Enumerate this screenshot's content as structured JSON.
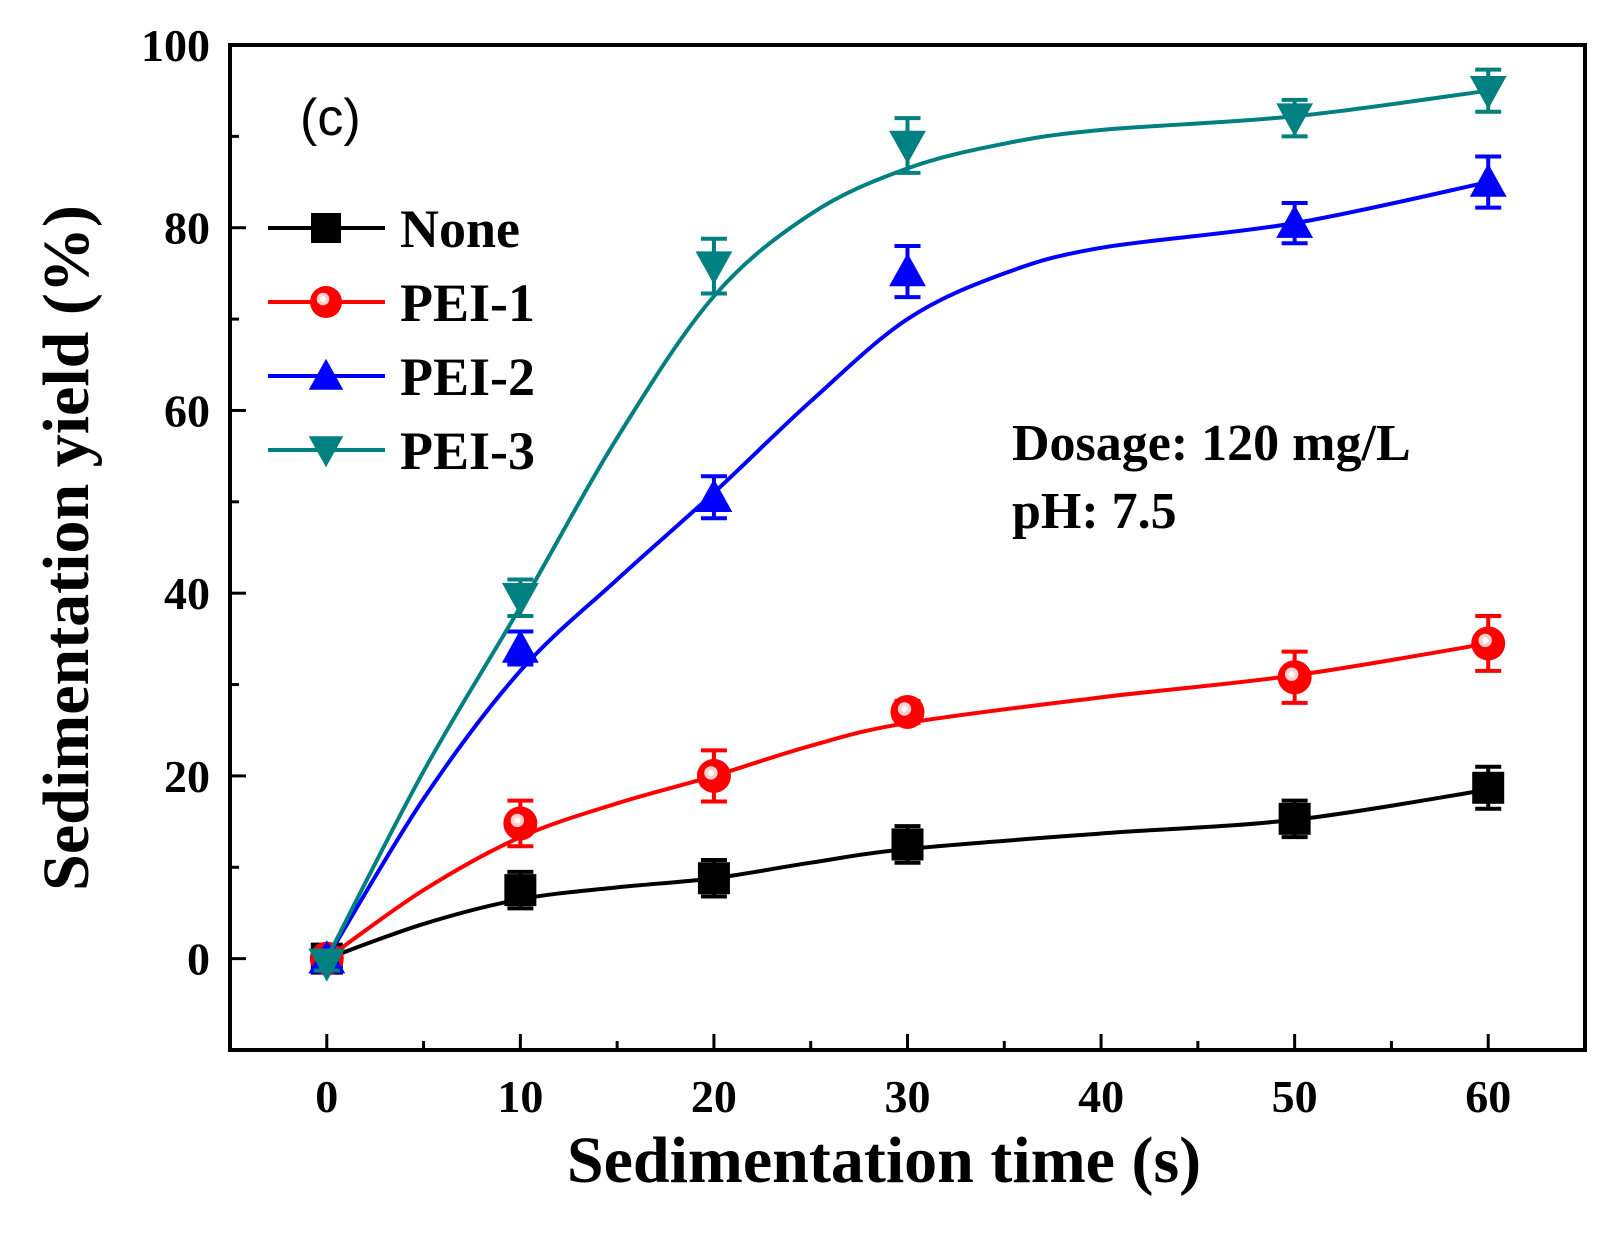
{
  "chart_data": {
    "type": "line",
    "panel_label": "(c)",
    "xlabel": "Sedimentation time (s)",
    "ylabel": "Sedimentation yield (%)",
    "xlim": [
      -5,
      65
    ],
    "ylim": [
      -10,
      100
    ],
    "xticks": [
      0,
      10,
      20,
      30,
      40,
      50,
      60
    ],
    "yticks": [
      0,
      20,
      40,
      60,
      80,
      100
    ],
    "legend_position": "top-left",
    "annotations": [
      "Dosage: 120 mg/L",
      "pH: 7.5"
    ],
    "series": [
      {
        "name": "None",
        "color": "#000000",
        "marker": "square",
        "x": [
          0,
          10,
          20,
          30,
          50,
          60
        ],
        "y": [
          0,
          7.5,
          8.8,
          12.5,
          15.3,
          18.7
        ],
        "err": [
          0.8,
          2.0,
          2.0,
          2.0,
          2.0,
          2.3
        ],
        "fit": [
          [
            0,
            0
          ],
          [
            5,
            3.8
          ],
          [
            10,
            6.5
          ],
          [
            15,
            7.8
          ],
          [
            20,
            8.8
          ],
          [
            25,
            10.5
          ],
          [
            30,
            12.0
          ],
          [
            40,
            13.7
          ],
          [
            50,
            15.2
          ],
          [
            60,
            18.5
          ]
        ]
      },
      {
        "name": "PEI-1",
        "color": "#ff0000",
        "marker": "circle",
        "x": [
          0,
          10,
          20,
          30,
          50,
          60
        ],
        "y": [
          0,
          14.8,
          20.0,
          27.0,
          30.8,
          34.5
        ],
        "err": [
          0.8,
          2.5,
          2.8,
          1.2,
          2.8,
          3.0
        ],
        "fit": [
          [
            0,
            0
          ],
          [
            5,
            7.5
          ],
          [
            10,
            13.3
          ],
          [
            15,
            17.0
          ],
          [
            20,
            20.0
          ],
          [
            25,
            23.3
          ],
          [
            30,
            25.8
          ],
          [
            40,
            28.6
          ],
          [
            50,
            31.0
          ],
          [
            60,
            34.5
          ]
        ]
      },
      {
        "name": "PEI-2",
        "color": "#0000ff",
        "marker": "triangle-up",
        "x": [
          0,
          10,
          20,
          30,
          50,
          60
        ],
        "y": [
          0,
          34.0,
          50.5,
          75.2,
          80.5,
          85.0
        ],
        "err": [
          0.8,
          1.8,
          2.3,
          2.8,
          2.2,
          2.8
        ],
        "fit": [
          [
            0,
            0
          ],
          [
            5,
            17.5
          ],
          [
            10,
            31.5
          ],
          [
            15,
            41.5
          ],
          [
            20,
            51.0
          ],
          [
            25,
            61.0
          ],
          [
            30,
            70.0
          ],
          [
            35,
            75.0
          ],
          [
            40,
            77.8
          ],
          [
            50,
            80.5
          ],
          [
            60,
            85.0
          ]
        ]
      },
      {
        "name": "PEI-3",
        "color": "#008080",
        "marker": "triangle-down",
        "x": [
          0,
          10,
          20,
          30,
          50,
          60
        ],
        "y": [
          -0.5,
          39.5,
          75.8,
          89.0,
          92.0,
          95.0
        ],
        "err": [
          0.8,
          2.0,
          3.0,
          3.0,
          2.0,
          2.3
        ],
        "fit": [
          [
            0,
            0
          ],
          [
            5,
            20.5
          ],
          [
            10,
            38.5
          ],
          [
            15,
            57.0
          ],
          [
            20,
            72.5
          ],
          [
            25,
            81.5
          ],
          [
            30,
            86.5
          ],
          [
            35,
            89.2
          ],
          [
            40,
            90.7
          ],
          [
            50,
            92.2
          ],
          [
            60,
            95.0
          ]
        ]
      }
    ]
  }
}
